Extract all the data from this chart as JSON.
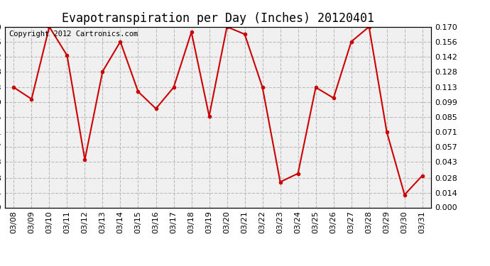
{
  "title": "Evapotranspiration per Day (Inches) 20120401",
  "copyright": "Copyright 2012 Cartronics.com",
  "dates": [
    "03/08",
    "03/09",
    "03/10",
    "03/11",
    "03/12",
    "03/13",
    "03/14",
    "03/15",
    "03/16",
    "03/17",
    "03/18",
    "03/19",
    "03/20",
    "03/21",
    "03/22",
    "03/23",
    "03/24",
    "03/25",
    "03/26",
    "03/27",
    "03/28",
    "03/29",
    "03/30",
    "03/31"
  ],
  "values": [
    0.113,
    0.102,
    0.17,
    0.143,
    0.045,
    0.128,
    0.156,
    0.109,
    0.093,
    0.113,
    0.165,
    0.086,
    0.17,
    0.163,
    0.113,
    0.024,
    0.032,
    0.113,
    0.103,
    0.156,
    0.17,
    0.071,
    0.012,
    0.03
  ],
  "line_color": "#cc0000",
  "marker": "o",
  "marker_size": 3,
  "bg_color": "#ffffff",
  "plot_bg": "#f0f0f0",
  "grid_color": "#bbbbbb",
  "ylim": [
    0.0,
    0.17
  ],
  "yticks": [
    0.0,
    0.014,
    0.028,
    0.043,
    0.057,
    0.071,
    0.085,
    0.099,
    0.113,
    0.128,
    0.142,
    0.156,
    0.17
  ],
  "title_fontsize": 12,
  "tick_fontsize": 8,
  "copyright_fontsize": 7.5
}
